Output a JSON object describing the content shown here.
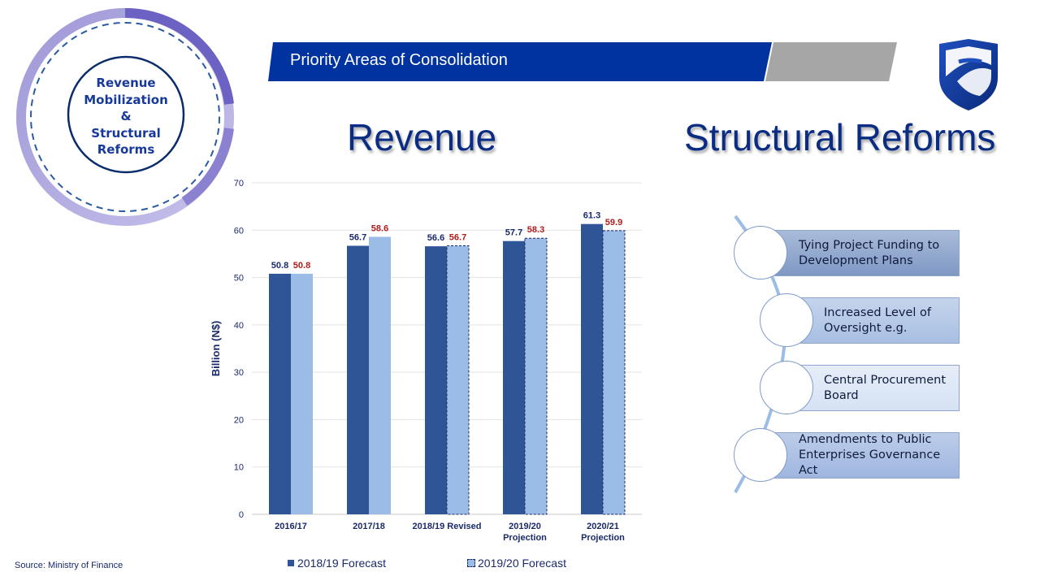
{
  "badge": {
    "lines": [
      "Revenue",
      "Mobilization",
      "&",
      "Structural",
      "Reforms"
    ]
  },
  "banner": {
    "title": "Priority Areas of Consolidation"
  },
  "headings": {
    "revenue": "Revenue",
    "structural": "Structural Reforms"
  },
  "chart_data": {
    "type": "bar",
    "title": "",
    "ylabel": "Billion (N$)",
    "xlabel": "",
    "ylim": [
      0,
      70
    ],
    "yticks": [
      0,
      10,
      20,
      30,
      40,
      50,
      60,
      70
    ],
    "grid": true,
    "legend": "bottom",
    "categories": [
      "2016/17",
      "2017/18",
      "2018/19 Revised",
      "2019/20\nProjection",
      "2020/21\nProjection"
    ],
    "series": [
      {
        "name": "2018/19 Forecast",
        "values": [
          50.8,
          56.7,
          56.6,
          57.7,
          61.3
        ],
        "color": "#2f5597",
        "label_color": "#1a2a6b"
      },
      {
        "name": "2019/20 Forecast",
        "values": [
          50.8,
          58.6,
          56.7,
          58.3,
          59.9
        ],
        "color": "#9bbce6",
        "label_color": "#b01c1c"
      }
    ]
  },
  "source": "Source: Ministry of Finance",
  "reforms": {
    "items": [
      "Tying Project Funding to Development Plans",
      "Increased Level of Oversight e.g.",
      "Central Procurement Board",
      "Amendments to Public Enterprises Governance Act"
    ]
  },
  "colors": {
    "brand": "#0033a0",
    "heading": "#0b2c83",
    "accent_gray": "#a6a6a6"
  }
}
